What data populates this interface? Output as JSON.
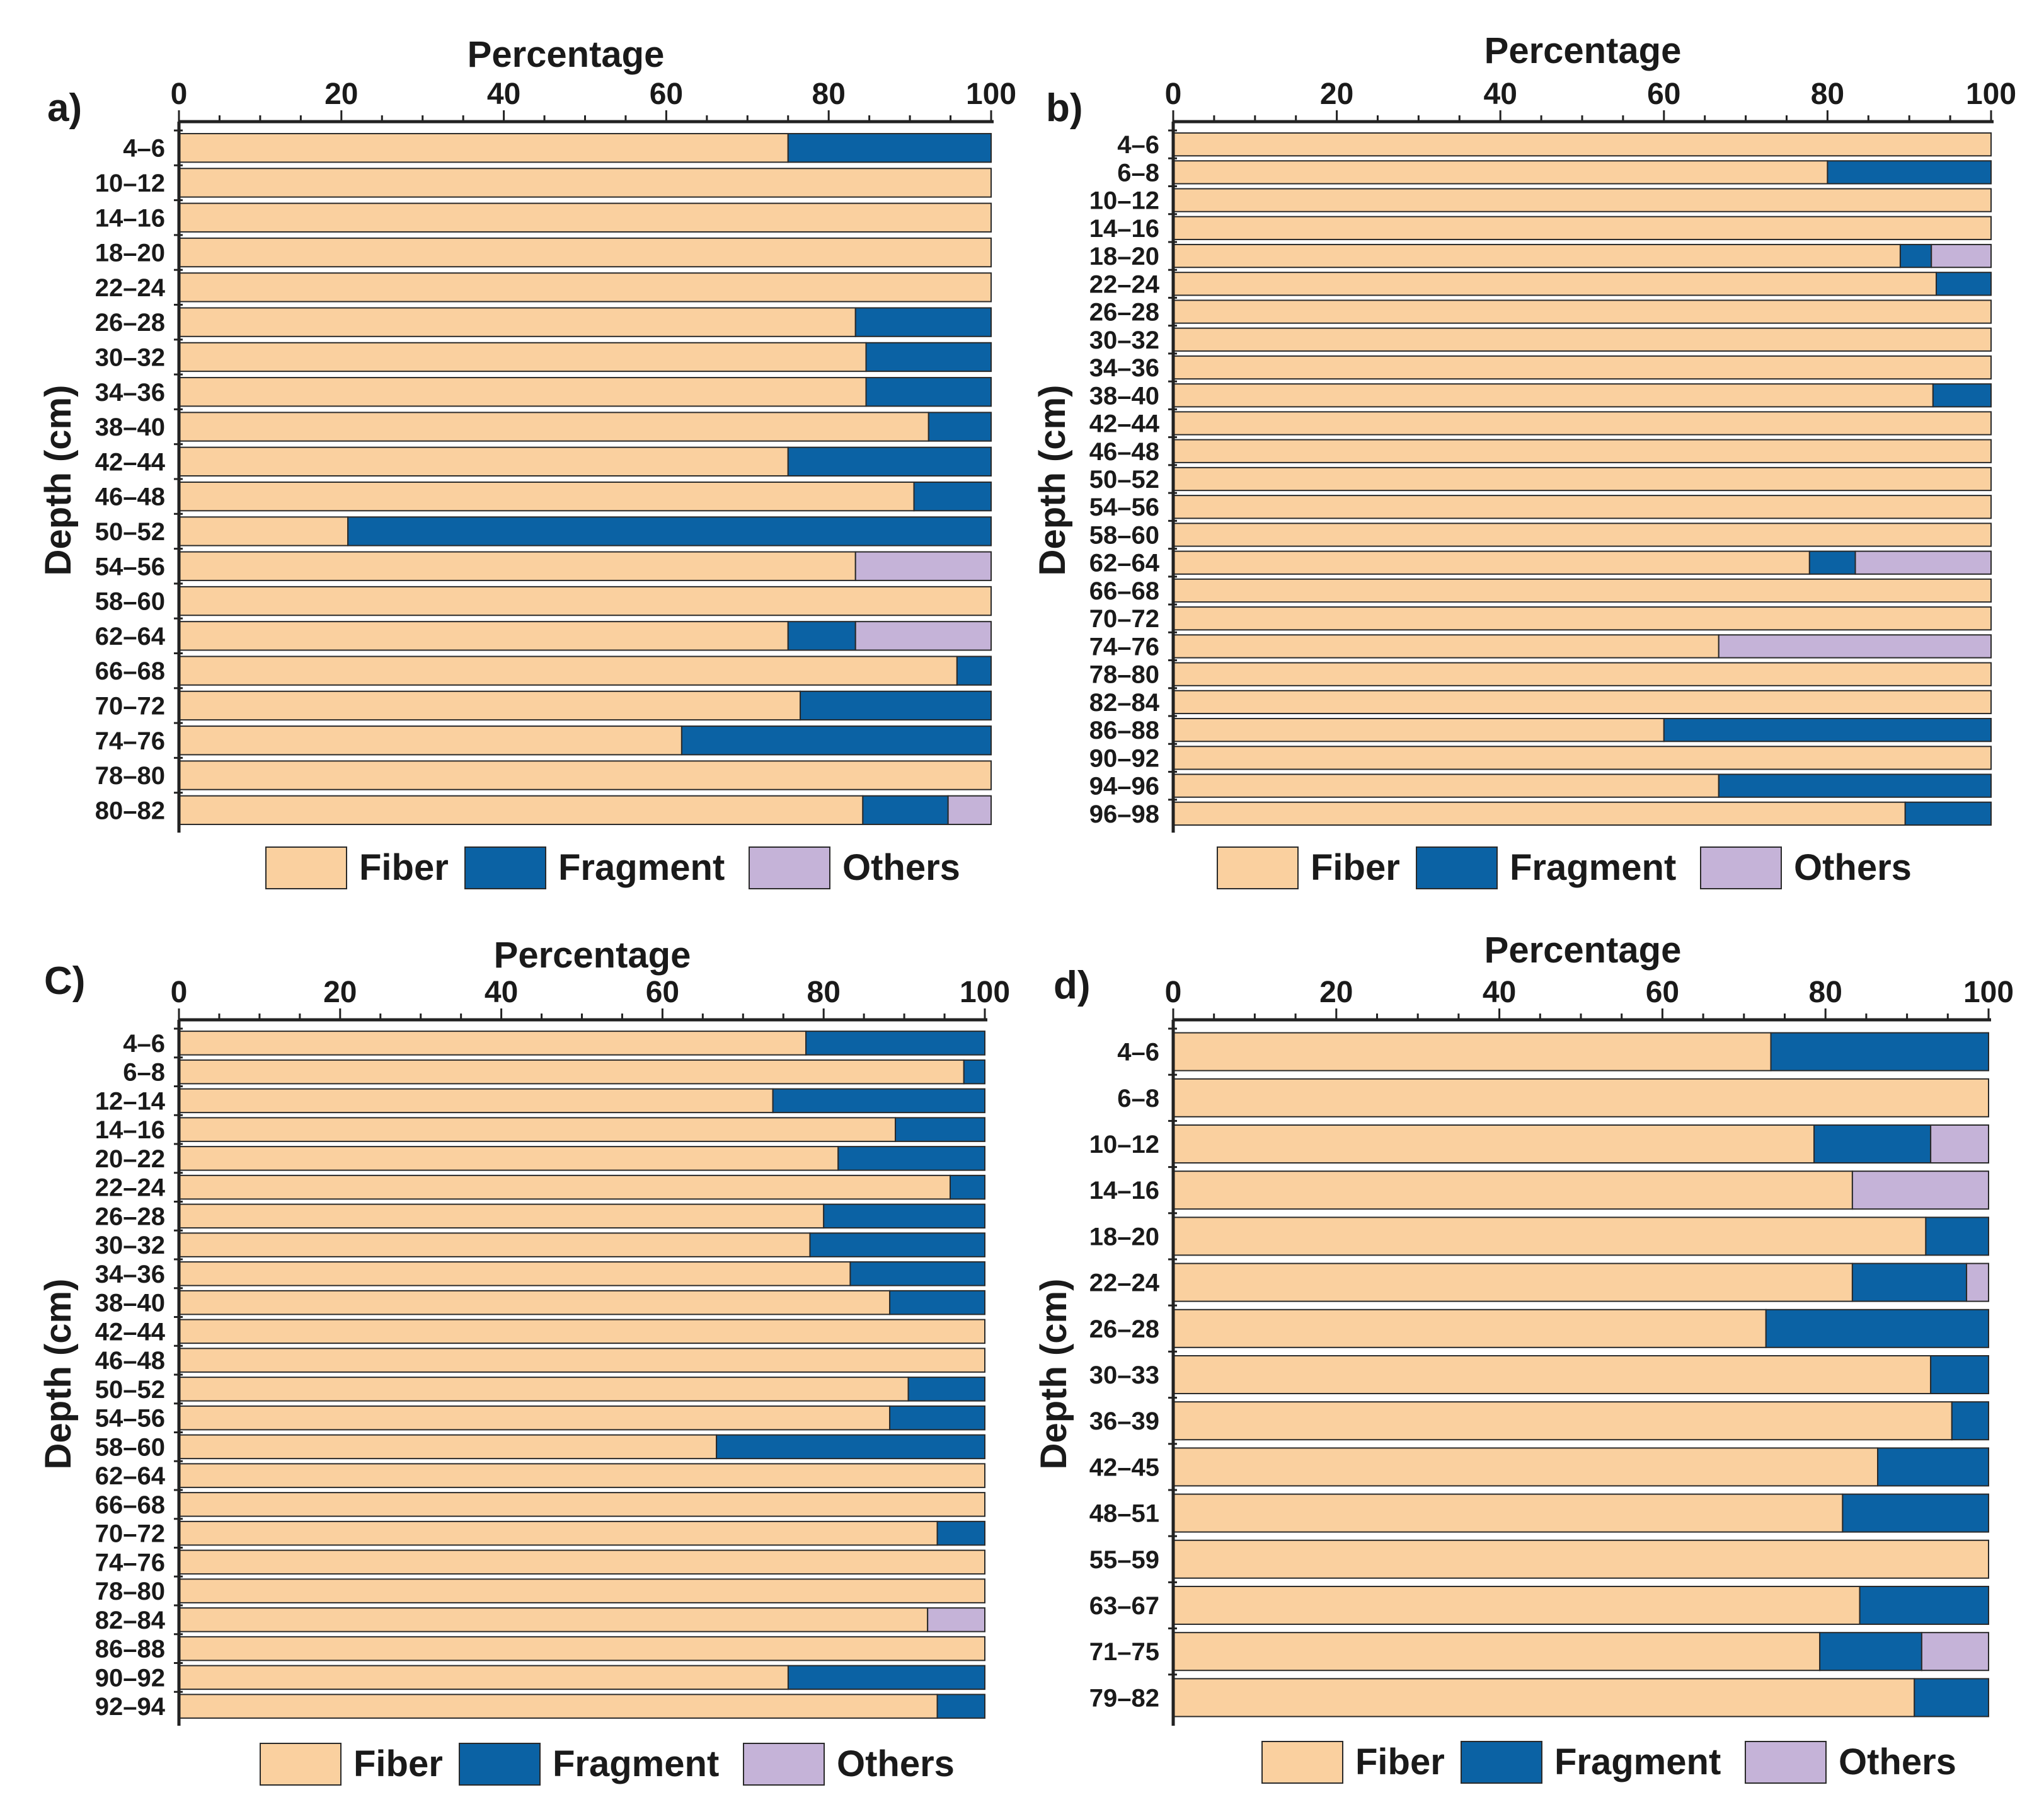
{
  "colors": {
    "fiber": "#FAD09F",
    "fragment": "#0B62A4",
    "others": "#C5B3D8",
    "axis": "#222222",
    "bar_stroke": "#2a2a2a"
  },
  "legend": {
    "items": [
      {
        "key": "fiber",
        "label": "Fiber"
      },
      {
        "key": "fragment",
        "label": "Fragment"
      },
      {
        "key": "others",
        "label": "Others"
      }
    ]
  },
  "chart_data": [
    {
      "type": "bar",
      "orientation": "horizontal",
      "stacked": true,
      "panel_label": "a)",
      "title": "Percentage",
      "xlabel": "Percentage",
      "ylabel": "Depth (cm)",
      "xlim": [
        0,
        100
      ],
      "xticks": [
        0,
        20,
        40,
        60,
        80,
        100
      ],
      "categories": [
        "4–6",
        "10–12",
        "14–16",
        "18–20",
        "22–24",
        "26–28",
        "30–32",
        "34–36",
        "38–40",
        "42–44",
        "46–48",
        "50–52",
        "54–56",
        "58–60",
        "62–64",
        "66–68",
        "70–72",
        "74–76",
        "78–80",
        "80–82"
      ],
      "series": [
        {
          "name": "Fiber",
          "values": [
            75,
            100,
            100,
            100,
            100,
            83.3,
            84.6,
            84.6,
            92.3,
            75,
            90.5,
            20.8,
            83.3,
            100,
            75,
            95.8,
            76.5,
            61.9,
            100,
            84.2
          ]
        },
        {
          "name": "Fragment",
          "values": [
            25,
            0,
            0,
            0,
            0,
            16.7,
            15.4,
            15.4,
            7.7,
            25,
            9.5,
            79.2,
            0,
            0,
            8.3,
            4.2,
            23.5,
            38.1,
            0,
            10.5
          ]
        },
        {
          "name": "Others",
          "values": [
            0,
            0,
            0,
            0,
            0,
            0,
            0,
            0,
            0,
            0,
            0,
            0,
            16.7,
            0,
            16.7,
            0,
            0,
            0,
            0,
            5.3
          ]
        }
      ],
      "legend": [
        "Fiber",
        "Fragment",
        "Others"
      ]
    },
    {
      "type": "bar",
      "orientation": "horizontal",
      "stacked": true,
      "panel_label": "b)",
      "title": "Percentage",
      "xlabel": "Percentage",
      "ylabel": "Depth (cm)",
      "xlim": [
        0,
        100
      ],
      "xticks": [
        0,
        20,
        40,
        60,
        80,
        100
      ],
      "categories": [
        "4–6",
        "6–8",
        "10–12",
        "14–16",
        "18–20",
        "22–24",
        "26–28",
        "30–32",
        "34–36",
        "38–40",
        "42–44",
        "46–48",
        "50–52",
        "54–56",
        "58–60",
        "62–64",
        "66–68",
        "70–72",
        "74–76",
        "78–80",
        "82–84",
        "86–88",
        "90–92",
        "94–96",
        "96–98"
      ],
      "series": [
        {
          "name": "Fiber",
          "values": [
            100,
            80,
            100,
            100,
            88.9,
            93.3,
            100,
            100,
            100,
            92.9,
            100,
            100,
            100,
            100,
            100,
            77.8,
            100,
            100,
            66.7,
            100,
            100,
            60,
            100,
            66.7,
            89.5
          ]
        },
        {
          "name": "Fragment",
          "values": [
            0,
            20,
            0,
            0,
            3.8,
            6.7,
            0,
            0,
            0,
            7.1,
            0,
            0,
            0,
            0,
            0,
            5.6,
            0,
            0,
            0,
            0,
            0,
            40,
            0,
            33.3,
            10.5
          ]
        },
        {
          "name": "Others",
          "values": [
            0,
            0,
            0,
            0,
            7.3,
            0,
            0,
            0,
            0,
            0,
            0,
            0,
            0,
            0,
            0,
            16.6,
            0,
            0,
            33.3,
            0,
            0,
            0,
            0,
            0,
            0
          ]
        }
      ],
      "legend": [
        "Fiber",
        "Fragment",
        "Others"
      ]
    },
    {
      "type": "bar",
      "orientation": "horizontal",
      "stacked": true,
      "panel_label": "C)",
      "title": "Percentage",
      "xlabel": "Percentage",
      "ylabel": "Depth (cm)",
      "xlim": [
        0,
        100
      ],
      "xticks": [
        0,
        20,
        40,
        60,
        80,
        100
      ],
      "categories": [
        "4–6",
        "6–8",
        "12–14",
        "14–16",
        "20–22",
        "22–24",
        "26–28",
        "30–32",
        "34–36",
        "38–40",
        "42–44",
        "46–48",
        "50–52",
        "54–56",
        "58–60",
        "62–64",
        "66–68",
        "70–72",
        "74–76",
        "78–80",
        "82–84",
        "86–88",
        "90–92",
        "92–94"
      ],
      "series": [
        {
          "name": "Fiber",
          "values": [
            77.8,
            97.4,
            73.7,
            88.9,
            81.8,
            95.7,
            80,
            78.3,
            83.3,
            88.2,
            100,
            100,
            90.5,
            88.2,
            66.7,
            100,
            100,
            94.1,
            100,
            100,
            92.9,
            100,
            75.6,
            94.1
          ]
        },
        {
          "name": "Fragment",
          "values": [
            22.2,
            2.6,
            26.3,
            11.1,
            18.2,
            4.3,
            20,
            21.7,
            16.7,
            11.8,
            0,
            0,
            9.5,
            11.8,
            33.3,
            0,
            0,
            5.9,
            0,
            0,
            0,
            0,
            24.4,
            5.9
          ]
        },
        {
          "name": "Others",
          "values": [
            0,
            0,
            0,
            0,
            0,
            0,
            0,
            0,
            0,
            0,
            0,
            0,
            0,
            0,
            0,
            0,
            0,
            0,
            0,
            0,
            7.1,
            0,
            0,
            0
          ]
        }
      ],
      "legend": [
        "Fiber",
        "Fragment",
        "Others"
      ]
    },
    {
      "type": "bar",
      "orientation": "horizontal",
      "stacked": true,
      "panel_label": "d)",
      "title": "Percentage",
      "xlabel": "Percentage",
      "ylabel": "Depth (cm)",
      "xlim": [
        0,
        100
      ],
      "xticks": [
        0,
        20,
        40,
        60,
        80,
        100
      ],
      "categories": [
        "4–6",
        "6–8",
        "10–12",
        "14–16",
        "18–20",
        "22–24",
        "26–28",
        "30–33",
        "36–39",
        "42–45",
        "48–51",
        "55–59",
        "63–67",
        "71–75",
        "79–82"
      ],
      "series": [
        {
          "name": "Fiber",
          "values": [
            73.3,
            100,
            78.6,
            83.3,
            92.3,
            83.3,
            72.7,
            92.9,
            95.5,
            86.4,
            82.1,
            100,
            84.2,
            79.3,
            90.9
          ]
        },
        {
          "name": "Fragment",
          "values": [
            26.7,
            0,
            14.3,
            0,
            7.7,
            14,
            27.3,
            7.1,
            4.5,
            13.6,
            17.9,
            0,
            15.8,
            12.5,
            9.1
          ]
        },
        {
          "name": "Others",
          "values": [
            0,
            0,
            7.1,
            16.7,
            0,
            2.7,
            0,
            0,
            0,
            0,
            0,
            0,
            0,
            8.2,
            0
          ]
        }
      ],
      "legend": [
        "Fiber",
        "Fragment",
        "Others"
      ]
    }
  ]
}
